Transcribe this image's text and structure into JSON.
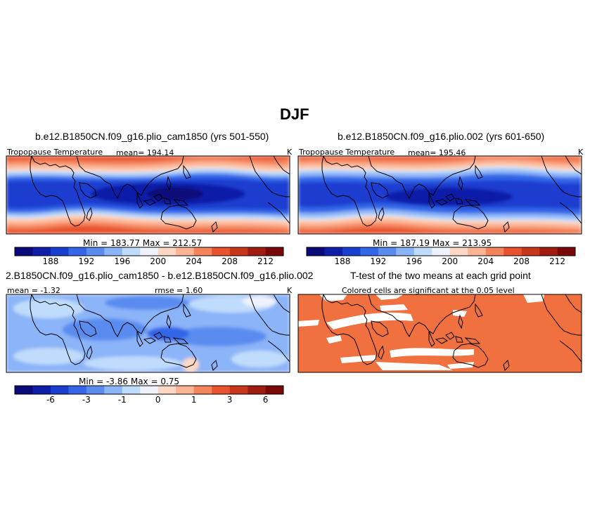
{
  "figure": {
    "title": "DJF"
  },
  "panels": {
    "p1": {
      "title": "b.e12.B1850CN.f09_g16.plio_cam1850 (yrs 501-550)",
      "variable": "Tropopause Temperature",
      "stat": "mean= 194.14",
      "units": "K",
      "minmax": "Min = 183.77 Max = 212.57"
    },
    "p2": {
      "title": "b.e12.B1850CN.f09_g16.plio.002 (yrs 601-650)",
      "variable": "Tropopause Temperature",
      "stat": "mean= 195.46",
      "units": "K",
      "minmax": "Min = 187.19 Max = 213.95"
    },
    "p3": {
      "title": "2.B1850CN.f09_g16.plio_cam1850 - b.e12.B1850CN.f09_g16.plio.002",
      "mean": "mean = -1.32",
      "rmse": "rmse = 1.60",
      "units": "K",
      "minmax": "Min = -3.86 Max = 0.75"
    },
    "p4": {
      "title": "T-test of the two means at each grid point",
      "subtitle": "Colored cells are significant at the 0.05 level"
    }
  },
  "colorbars": {
    "absolute": {
      "colors": [
        "#0a0a7a",
        "#0e1ea8",
        "#1a3ed0",
        "#3366e8",
        "#5a8cf0",
        "#8cb4f8",
        "#c0dcfc",
        "#eef3fb",
        "#fcd8c4",
        "#fcb494",
        "#f4845c",
        "#e8522e",
        "#c8361c",
        "#a01c10",
        "#7a0808"
      ],
      "tick_labels": [
        "188",
        "192",
        "196",
        "200",
        "204",
        "208",
        "212"
      ]
    },
    "difference": {
      "colors": [
        "#0a0a7a",
        "#0e1ea8",
        "#1a3ed0",
        "#3366e8",
        "#5a8cf0",
        "#8cb4f8",
        "#c0dcfc",
        "#eef3fb",
        "#fcd8c4",
        "#fcb494",
        "#f4845c",
        "#e8522e",
        "#c8361c",
        "#a01c10",
        "#7a0808"
      ],
      "tick_labels": [
        "-6",
        "-3",
        "-1",
        "0",
        "1",
        "3",
        "6"
      ]
    }
  },
  "chart_data": [
    {
      "type": "heatmap",
      "title": "b.e12.B1850CN.f09_g16.plio_cam1850 (yrs 501-550)",
      "variable": "Tropopause Temperature",
      "units": "K",
      "mean": 194.14,
      "min": 183.77,
      "max": 212.57,
      "colorbar_ticks": [
        188,
        192,
        196,
        200,
        204,
        208,
        212
      ]
    },
    {
      "type": "heatmap",
      "title": "b.e12.B1850CN.f09_g16.plio.002 (yrs 601-650)",
      "variable": "Tropopause Temperature",
      "units": "K",
      "mean": 195.46,
      "min": 187.19,
      "max": 213.95,
      "colorbar_ticks": [
        188,
        192,
        196,
        200,
        204,
        208,
        212
      ]
    },
    {
      "type": "heatmap",
      "title": "2.B1850CN.f09_g16.plio_cam1850 - b.e12.B1850CN.f09_g16.plio.002",
      "units": "K",
      "mean": -1.32,
      "rmse": 1.6,
      "min": -3.86,
      "max": 0.75,
      "colorbar_ticks": [
        -6,
        -3,
        -1,
        0,
        1,
        3,
        6
      ]
    },
    {
      "type": "heatmap",
      "title": "T-test of the two means at each grid point",
      "subtitle": "Colored cells are significant at the 0.05 level",
      "significance_level": 0.05,
      "significant_color": "#f07040"
    }
  ]
}
